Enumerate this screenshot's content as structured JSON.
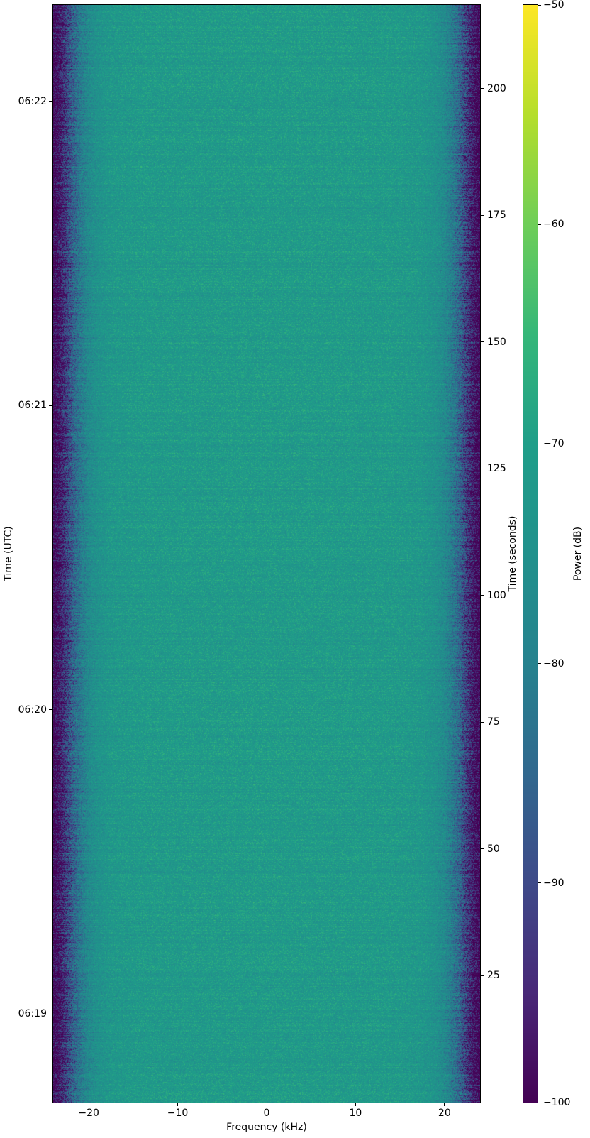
{
  "figure": {
    "background": "#ffffff"
  },
  "chart_data": {
    "type": "heatmap",
    "title": "",
    "xlabel": "Frequency (kHz)",
    "xlim": [
      -24,
      24
    ],
    "x_ticks": [
      -20,
      -10,
      0,
      10,
      20
    ],
    "x_tick_labels": [
      "−20",
      "−10",
      "0",
      "10",
      "20"
    ],
    "ylabel_left": "Time (UTC)",
    "y_ticks_left": [
      {
        "label": "06:19",
        "seconds": 17.5
      },
      {
        "label": "06:20",
        "seconds": 77.5
      },
      {
        "label": "06:21",
        "seconds": 137.5
      },
      {
        "label": "06:22",
        "seconds": 197.5
      }
    ],
    "ylabel_right": "Time (seconds)",
    "ylim_seconds": [
      0,
      216.5
    ],
    "y_ticks_right": [
      25,
      50,
      75,
      100,
      125,
      150,
      175,
      200
    ],
    "colorbar": {
      "label": "Power (dB)",
      "vmin": -100,
      "vmax": -50,
      "ticks": [
        -50,
        -60,
        -70,
        -80,
        -90,
        -100
      ],
      "tick_labels": [
        "−50",
        "−60",
        "−70",
        "−80",
        "−90",
        "−100"
      ],
      "colormap": "viridis",
      "stops": [
        "#440154",
        "#482878",
        "#3e4a89",
        "#31688e",
        "#26828e",
        "#21918c",
        "#1f9e89",
        "#35b779",
        "#6ece58",
        "#b5de2b",
        "#fde725"
      ]
    },
    "grid": false,
    "legend": null,
    "power_profile_db_vs_abs_khz": [
      [
        0,
        -71.5
      ],
      [
        14,
        -71.8
      ],
      [
        17.5,
        -72.6
      ],
      [
        19,
        -74.5
      ],
      [
        20,
        -77
      ],
      [
        21,
        -81.5
      ],
      [
        21.8,
        -86
      ],
      [
        22.4,
        -91
      ],
      [
        23,
        -96
      ],
      [
        23.5,
        -99.5
      ],
      [
        24,
        -101.5
      ]
    ],
    "noise_db_pixel_amplitude": 6.5,
    "noise_db_row_amplitude": 2.0,
    "description": "Uniform wideband-noise spectrogram: flat ~-72 dB passband over roughly ±20 kHz rolling off to ~-100 dB at the ±24 kHz band edges, constant over ~216 s (06:19 to 06:22 UTC)."
  }
}
